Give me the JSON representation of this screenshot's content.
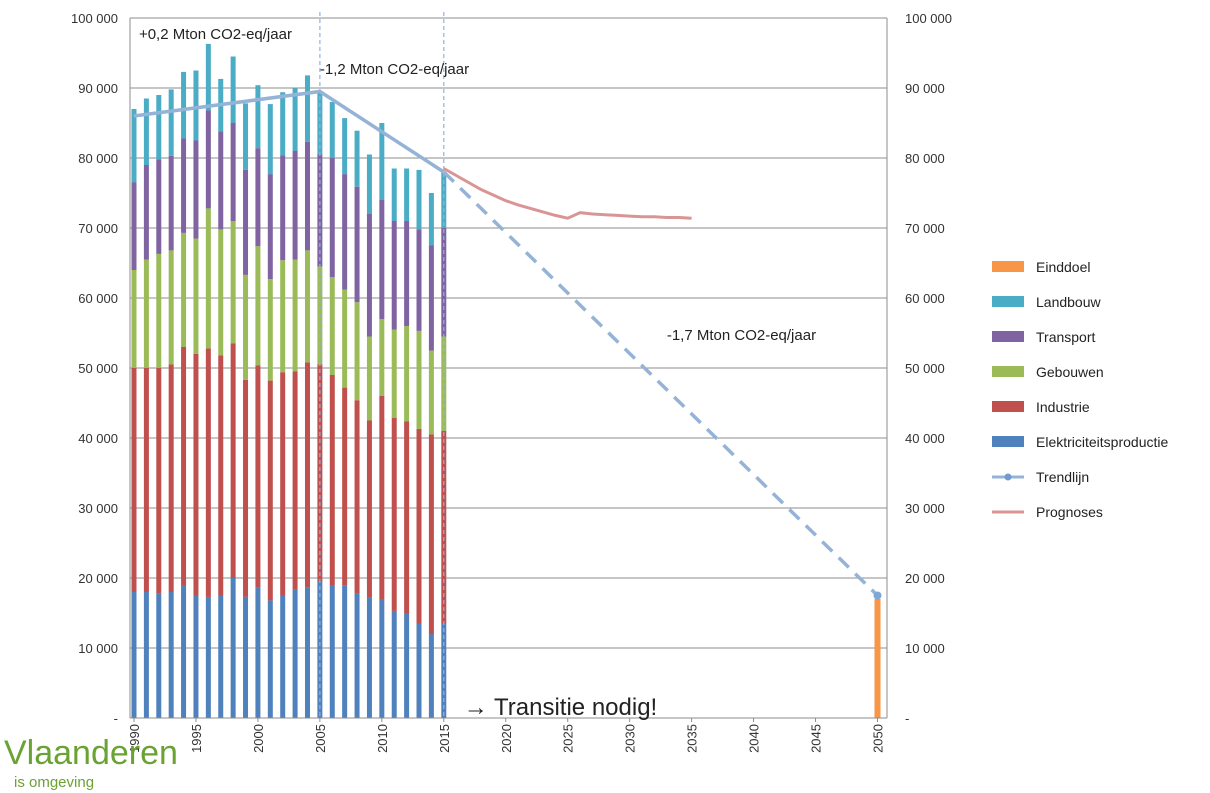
{
  "chart_data": {
    "type": "bar",
    "stacked": true,
    "years": [
      1990,
      1991,
      1992,
      1993,
      1994,
      1995,
      1996,
      1997,
      1998,
      1999,
      2000,
      2001,
      2002,
      2003,
      2004,
      2005,
      2006,
      2007,
      2008,
      2009,
      2010,
      2011,
      2012,
      2013,
      2014,
      2015
    ],
    "series": [
      {
        "name": "Elektriciteitsproductie",
        "color": "#4f81bd",
        "values": [
          18000,
          18000,
          17800,
          18000,
          19000,
          17500,
          17300,
          17500,
          20000,
          17300,
          18600,
          16800,
          17500,
          18300,
          18700,
          19500,
          19000,
          18900,
          17800,
          17200,
          17000,
          15300,
          15000,
          13500,
          12000,
          13500
        ]
      },
      {
        "name": "Industrie",
        "color": "#c0504d",
        "values": [
          32000,
          32000,
          32200,
          32500,
          34000,
          34500,
          35500,
          34300,
          33500,
          31000,
          31800,
          31400,
          31900,
          31200,
          32100,
          31000,
          30000,
          28300,
          27600,
          25300,
          29000,
          27600,
          27400,
          27800,
          28500,
          27500
        ]
      },
      {
        "name": "Gebouwen",
        "color": "#9bbb59",
        "values": [
          14000,
          15500,
          16300,
          16300,
          16300,
          16500,
          20000,
          18000,
          17500,
          15000,
          17000,
          14500,
          16000,
          16000,
          16000,
          14000,
          14000,
          14000,
          14000,
          12000,
          11000,
          12600,
          13600,
          14000,
          12000,
          13500
        ]
      },
      {
        "name": "Transport",
        "color": "#8064a2",
        "values": [
          12500,
          13500,
          13500,
          13500,
          13500,
          14000,
          14000,
          14000,
          14000,
          15000,
          14000,
          15000,
          15000,
          15500,
          15500,
          16000,
          17000,
          16500,
          16500,
          17500,
          17000,
          15500,
          15000,
          14500,
          15000,
          15500
        ]
      },
      {
        "name": "Landbouw",
        "color": "#4bacc6",
        "values": [
          10500,
          9500,
          9200,
          9500,
          9500,
          10000,
          9500,
          7500,
          9500,
          9500,
          9000,
          10000,
          9000,
          9000,
          9500,
          9000,
          8000,
          8000,
          8000,
          8500,
          11000,
          7500,
          7500,
          8500,
          7500,
          8000
        ]
      }
    ],
    "einddoel": {
      "name": "Einddoel",
      "color": "#f79646",
      "year": 2050,
      "value": 17000
    },
    "trend": {
      "name": "Trendlijn",
      "color": "#95b3d7",
      "solid": [
        [
          1990,
          86000
        ],
        [
          2005,
          89500
        ],
        [
          2015,
          78000
        ]
      ],
      "dashed": [
        [
          2015,
          78000
        ],
        [
          2050,
          17500
        ]
      ]
    },
    "prognoses": {
      "name": "Prognoses",
      "color": "#d99594",
      "points": [
        [
          2015,
          78500
        ],
        [
          2016,
          77500
        ],
        [
          2017,
          76500
        ],
        [
          2018,
          75500
        ],
        [
          2019,
          74700
        ],
        [
          2020,
          73900
        ],
        [
          2021,
          73300
        ],
        [
          2022,
          72800
        ],
        [
          2023,
          72300
        ],
        [
          2024,
          71800
        ],
        [
          2025,
          71400
        ],
        [
          2026,
          72200
        ],
        [
          2027,
          72000
        ],
        [
          2028,
          71900
        ],
        [
          2029,
          71800
        ],
        [
          2030,
          71700
        ],
        [
          2031,
          71600
        ],
        [
          2032,
          71600
        ],
        [
          2033,
          71500
        ],
        [
          2034,
          71500
        ],
        [
          2035,
          71400
        ]
      ]
    },
    "vlines": [
      2005,
      2015
    ],
    "ylim": [
      0,
      100000
    ],
    "xlim": [
      1990,
      2050
    ],
    "y_ticks": [
      {
        "v": 0,
        "label": "-"
      },
      {
        "v": 10000,
        "label": "10 000"
      },
      {
        "v": 20000,
        "label": "20 000"
      },
      {
        "v": 30000,
        "label": "30 000"
      },
      {
        "v": 40000,
        "label": "40 000"
      },
      {
        "v": 50000,
        "label": "50 000"
      },
      {
        "v": 60000,
        "label": "60 000"
      },
      {
        "v": 70000,
        "label": "70 000"
      },
      {
        "v": 80000,
        "label": "80 000"
      },
      {
        "v": 90000,
        "label": "90 000"
      },
      {
        "v": 100000,
        "label": "100 000"
      }
    ],
    "x_ticks": [
      "1990",
      "1995",
      "2000",
      "2005",
      "2010",
      "2015",
      "2020",
      "2025",
      "2030",
      "2035",
      "2040",
      "2045",
      "2050"
    ],
    "annotations": [
      {
        "text": "+0,2 Mton CO2-eq/jaar",
        "x": 1990.4,
        "y": 97000
      },
      {
        "text": "-1,2 Mton CO2-eq/jaar",
        "x": 2005,
        "y": 92000
      },
      {
        "text": "-1,7 Mton CO2-eq/jaar",
        "x": 2033,
        "y": 54000
      }
    ],
    "transition_text": "→ Transitie nodig!",
    "legend": [
      "Einddoel",
      "Landbouw",
      "Transport",
      "Gebouwen",
      "Industrie",
      "Elektriciteitsproductie",
      "Trendlijn",
      "Prognoses"
    ]
  },
  "logo": {
    "name": "Vlaanderen",
    "sub": "is omgeving",
    "color": "#6aa233"
  }
}
